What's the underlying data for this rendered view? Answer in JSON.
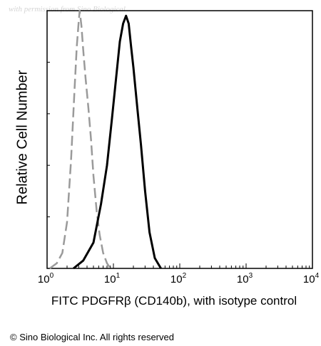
{
  "watermark": "with permission from Sino Biological",
  "copyright": "© Sino Biological Inc. All rights reserved",
  "chart_data": {
    "type": "line",
    "title": "",
    "xlabel": "FITC PDGFRβ (CD140b), with isotype control",
    "ylabel": "Relative Cell Number",
    "x_scale": "log",
    "xlim": [
      1,
      10000
    ],
    "ylim": [
      0,
      100
    ],
    "x_tick_labels": [
      {
        "base": "10",
        "exp": "0",
        "value": 1
      },
      {
        "base": "10",
        "exp": "1",
        "value": 10
      },
      {
        "base": "10",
        "exp": "2",
        "value": 100
      },
      {
        "base": "10",
        "exp": "3",
        "value": 1000
      },
      {
        "base": "10",
        "exp": "4",
        "value": 10000
      }
    ],
    "legend": "none",
    "grid": false,
    "series": [
      {
        "style": "dashed",
        "color": "#9a9a9a",
        "x": [
          1.1,
          1.4,
          1.7,
          2.0,
          2.3,
          2.6,
          2.8,
          3.0,
          3.1,
          3.3,
          3.5,
          3.8,
          4.2,
          4.6,
          5.0,
          5.6,
          6.2,
          7.0,
          8.0,
          9.0
        ],
        "y": [
          0,
          2,
          6,
          18,
          42,
          70,
          86,
          96,
          100,
          94,
          85,
          74,
          62,
          50,
          36,
          22,
          13,
          6,
          2,
          0
        ]
      },
      {
        "style": "solid",
        "color": "#000000",
        "x": [
          2.5,
          3.5,
          5.0,
          6.5,
          8.0,
          9.5,
          11.0,
          12.5,
          14.0,
          15.5,
          17.0,
          18.5,
          20.0,
          23.0,
          26.0,
          30.0,
          35.0,
          42.0,
          52.0
        ],
        "y": [
          0,
          3,
          10,
          25,
          40,
          58,
          74,
          88,
          95,
          98,
          95,
          86,
          78,
          62,
          48,
          30,
          14,
          4,
          0
        ]
      }
    ]
  }
}
